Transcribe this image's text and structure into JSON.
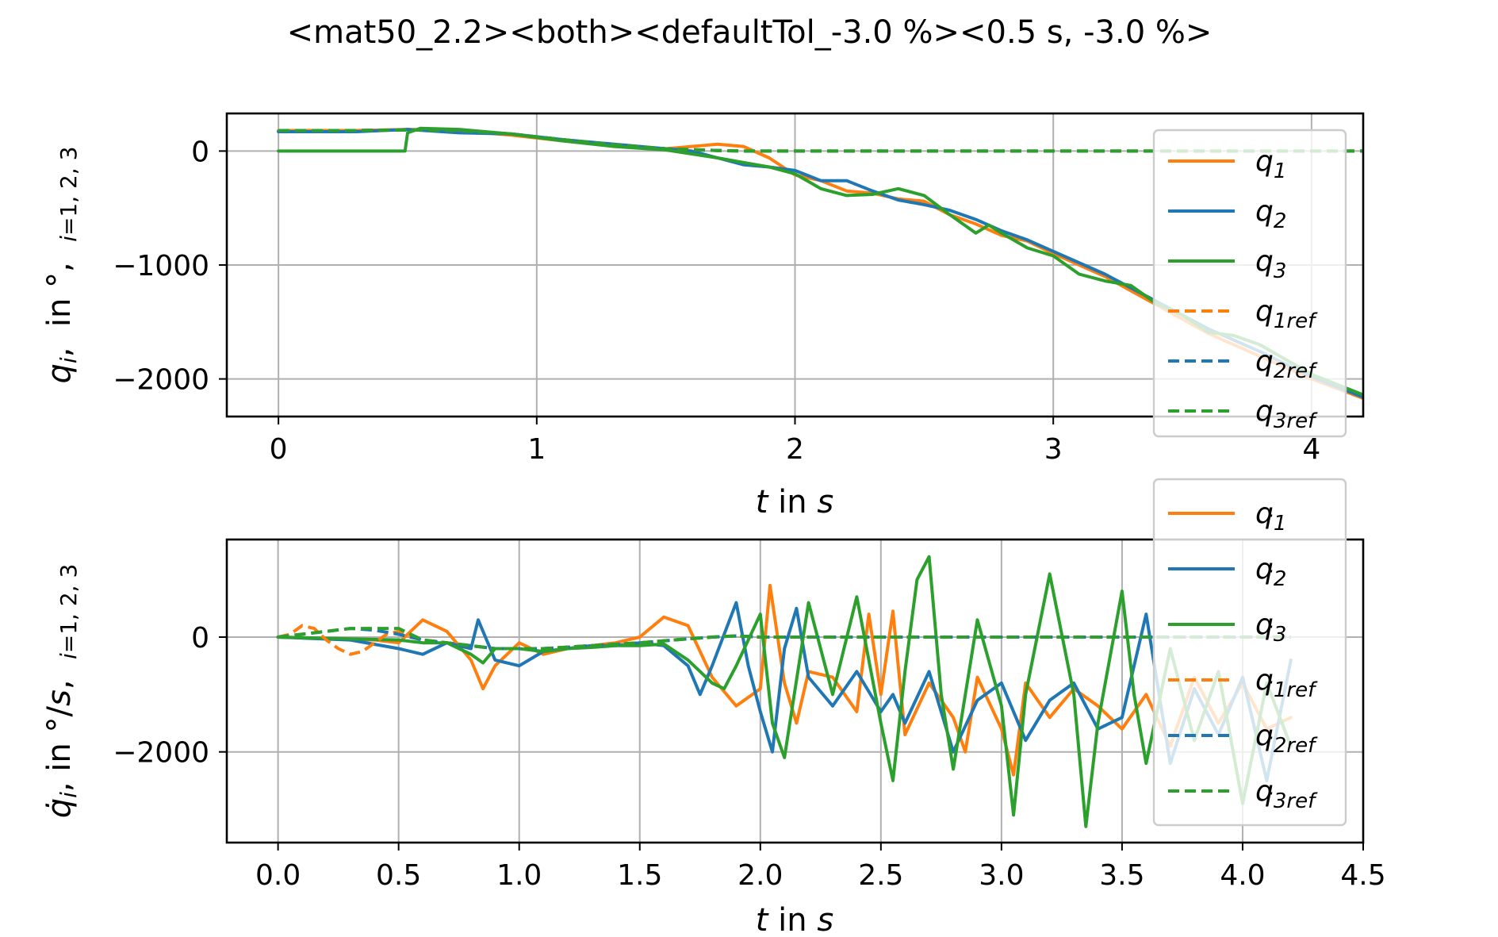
{
  "title": "<mat50_2.2><both><defaultTol_-3.0 %><0.5 s, -3.0 %>",
  "colors": {
    "q1": "#ff7f0e",
    "q2": "#1f77b4",
    "q3": "#2ca02c"
  },
  "chart_data": [
    {
      "type": "line",
      "subplot": "top",
      "xlabel": "t in s",
      "ylabel": "q_i, in °, i=1,2,3",
      "xlim": [
        -0.2,
        4.2
      ],
      "ylim": [
        -2330,
        330
      ],
      "xticks": [
        0,
        1,
        2,
        3,
        4
      ],
      "xtick_labels": [
        "0",
        "1",
        "2",
        "3",
        "4"
      ],
      "yticks": [
        0,
        -1000,
        -2000
      ],
      "ytick_labels": [
        "0",
        "−1000",
        "−2000"
      ],
      "grid": true,
      "legend": "right, inside",
      "legend_entries": [
        "q1",
        "q2",
        "q3",
        "q1ref",
        "q2ref",
        "q3ref"
      ],
      "series": [
        {
          "name": "q1",
          "color": "#ff7f0e",
          "dash": false,
          "x": [
            0.0,
            0.3,
            0.5,
            0.7,
            0.9,
            1.1,
            1.3,
            1.5,
            1.6,
            1.7,
            1.8,
            1.9,
            2.0,
            2.1,
            2.2,
            2.3,
            2.4,
            2.5,
            2.6,
            2.7,
            2.8,
            2.9,
            3.0,
            3.2,
            3.4,
            3.6,
            3.8,
            4.0,
            4.2
          ],
          "y": [
            180,
            180,
            190,
            180,
            140,
            90,
            50,
            20,
            40,
            60,
            40,
            -60,
            -210,
            -260,
            -350,
            -370,
            -420,
            -440,
            -560,
            -640,
            -740,
            -790,
            -900,
            -1100,
            -1350,
            -1600,
            -1800,
            -2000,
            -2170
          ]
        },
        {
          "name": "q2",
          "color": "#1f77b4",
          "dash": false,
          "x": [
            0.0,
            0.3,
            0.5,
            0.7,
            0.9,
            1.1,
            1.3,
            1.5,
            1.6,
            1.7,
            1.8,
            1.9,
            2.0,
            2.1,
            2.2,
            2.3,
            2.4,
            2.5,
            2.6,
            2.7,
            2.8,
            2.9,
            3.0,
            3.2,
            3.4,
            3.6,
            3.8,
            4.0,
            4.2
          ],
          "y": [
            170,
            170,
            190,
            160,
            150,
            100,
            60,
            20,
            0,
            -60,
            -120,
            -140,
            -170,
            -260,
            -260,
            -350,
            -430,
            -470,
            -520,
            -600,
            -700,
            -780,
            -880,
            -1080,
            -1320,
            -1560,
            -1760,
            -1980,
            -2160
          ]
        },
        {
          "name": "q3",
          "color": "#2ca02c",
          "dash": false,
          "x": [
            0.0,
            0.49,
            0.5,
            0.55,
            0.7,
            0.9,
            1.1,
            1.3,
            1.5,
            1.7,
            1.8,
            1.9,
            2.0,
            2.1,
            2.2,
            2.3,
            2.4,
            2.5,
            2.6,
            2.7,
            2.75,
            2.8,
            2.9,
            3.0,
            3.1,
            3.2,
            3.3,
            3.4,
            3.5,
            3.6,
            3.7,
            3.8,
            4.0,
            4.2
          ],
          "y": [
            0,
            0,
            160,
            200,
            190,
            150,
            90,
            40,
            10,
            -60,
            -100,
            -140,
            -200,
            -330,
            -390,
            -380,
            -330,
            -390,
            -560,
            -720,
            -650,
            -720,
            -850,
            -920,
            -1080,
            -1140,
            -1180,
            -1340,
            -1440,
            -1590,
            -1620,
            -1700,
            -1960,
            -2140
          ]
        },
        {
          "name": "q1ref",
          "color": "#ff7f0e",
          "dash": true,
          "x": [
            0.0,
            0.3,
            0.5,
            0.7,
            0.9,
            1.1,
            1.3,
            1.5,
            1.7,
            1.8,
            4.2
          ],
          "y": [
            180,
            180,
            185,
            180,
            150,
            100,
            55,
            20,
            5,
            0,
            0
          ]
        },
        {
          "name": "q2ref",
          "color": "#1f77b4",
          "dash": true,
          "x": [
            0.0,
            0.3,
            0.5,
            0.7,
            0.9,
            1.1,
            1.3,
            1.5,
            1.7,
            1.8,
            4.2
          ],
          "y": [
            180,
            180,
            185,
            180,
            150,
            100,
            55,
            20,
            5,
            0,
            0
          ]
        },
        {
          "name": "q3ref",
          "color": "#2ca02c",
          "dash": true,
          "x": [
            0.0,
            0.3,
            0.5,
            0.7,
            0.9,
            1.1,
            1.3,
            1.5,
            1.7,
            1.8,
            4.2
          ],
          "y": [
            180,
            180,
            185,
            180,
            150,
            100,
            55,
            20,
            5,
            0,
            0
          ]
        }
      ]
    },
    {
      "type": "line",
      "subplot": "bottom",
      "xlabel": "t in s",
      "ylabel": "q̇_i, in °/s, i=1,2,3",
      "xlim": [
        -0.2125,
        4.5
      ],
      "ylim": [
        -3580,
        1700
      ],
      "xticks": [
        0.0,
        0.5,
        1.0,
        1.5,
        2.0,
        2.5,
        3.0,
        3.5,
        4.0,
        4.5
      ],
      "xtick_labels": [
        "0.0",
        "0.5",
        "1.0",
        "1.5",
        "2.0",
        "2.5",
        "3.0",
        "3.5",
        "4.0",
        "4.5"
      ],
      "yticks": [
        0,
        -2000
      ],
      "ytick_labels": [
        "0",
        "−2000"
      ],
      "grid": true,
      "legend": "right, inside",
      "legend_entries": [
        "q̇1",
        "q̇2",
        "q̇3",
        "q̇1ref",
        "q̇2ref",
        "q̇3ref"
      ],
      "series": [
        {
          "name": "q̇1",
          "color": "#ff7f0e",
          "dash": false,
          "x": [
            0.0,
            0.4,
            0.5,
            0.6,
            0.7,
            0.8,
            0.85,
            0.9,
            1.0,
            1.1,
            1.2,
            1.3,
            1.4,
            1.5,
            1.6,
            1.7,
            1.8,
            1.9,
            2.0,
            2.04,
            2.1,
            2.15,
            2.2,
            2.3,
            2.4,
            2.45,
            2.5,
            2.55,
            2.6,
            2.7,
            2.8,
            2.85,
            2.9,
            3.0,
            3.05,
            3.1,
            3.2,
            3.3,
            3.4,
            3.5,
            3.6,
            3.7,
            3.8,
            3.9,
            4.0,
            4.1,
            4.2
          ],
          "y": [
            0,
            -50,
            -100,
            300,
            100,
            -400,
            -900,
            -500,
            -100,
            -300,
            -200,
            -150,
            -100,
            0,
            350,
            200,
            -700,
            -1200,
            -900,
            900,
            -800,
            -1500,
            -600,
            -700,
            -1300,
            400,
            -1000,
            450,
            -1700,
            -800,
            -1400,
            -2000,
            -700,
            -1600,
            -2400,
            -800,
            -1400,
            -900,
            -1200,
            -1600,
            -1000,
            -1900,
            -700,
            -1500,
            -800,
            -1600,
            -1400
          ]
        },
        {
          "name": "q̇2",
          "color": "#1f77b4",
          "dash": false,
          "x": [
            0.0,
            0.3,
            0.5,
            0.6,
            0.7,
            0.8,
            0.83,
            0.9,
            1.0,
            1.1,
            1.2,
            1.3,
            1.4,
            1.5,
            1.6,
            1.7,
            1.75,
            1.8,
            1.9,
            1.95,
            2.0,
            2.05,
            2.1,
            2.15,
            2.2,
            2.3,
            2.4,
            2.5,
            2.55,
            2.6,
            2.7,
            2.8,
            2.9,
            3.0,
            3.1,
            3.2,
            3.3,
            3.4,
            3.5,
            3.6,
            3.7,
            3.8,
            3.9,
            4.0,
            4.1,
            4.2
          ],
          "y": [
            0,
            -50,
            -200,
            -300,
            -100,
            -200,
            300,
            -400,
            -500,
            -250,
            -200,
            -150,
            -150,
            -100,
            -150,
            -500,
            -1000,
            -500,
            600,
            -500,
            -1300,
            -2000,
            -200,
            500,
            -700,
            -1200,
            -600,
            -1300,
            -1000,
            -1500,
            -600,
            -2000,
            -1100,
            -800,
            -1800,
            -1100,
            -800,
            -1600,
            -1400,
            400,
            -2200,
            -900,
            -1700,
            -700,
            -2500,
            -400
          ]
        },
        {
          "name": "q̇3",
          "color": "#2ca02c",
          "dash": false,
          "x": [
            0.0,
            0.5,
            0.6,
            0.7,
            0.8,
            0.85,
            0.9,
            1.0,
            1.1,
            1.2,
            1.3,
            1.4,
            1.5,
            1.6,
            1.7,
            1.8,
            1.85,
            1.9,
            2.0,
            2.05,
            2.1,
            2.2,
            2.3,
            2.4,
            2.5,
            2.55,
            2.6,
            2.65,
            2.7,
            2.75,
            2.8,
            2.9,
            3.0,
            3.05,
            3.1,
            3.2,
            3.3,
            3.35,
            3.4,
            3.5,
            3.55,
            3.6,
            3.7,
            3.8,
            3.9,
            4.0,
            4.1,
            4.2
          ],
          "y": [
            0,
            -50,
            -100,
            -100,
            -300,
            -450,
            -200,
            -200,
            -250,
            -200,
            -180,
            -150,
            -150,
            -120,
            -400,
            -800,
            -900,
            -500,
            400,
            -1500,
            -2100,
            600,
            -1000,
            700,
            -1500,
            -2500,
            -600,
            1000,
            1400,
            -1000,
            -2300,
            300,
            -1200,
            -3100,
            -1000,
            1100,
            -1000,
            -3300,
            -1500,
            800,
            -1000,
            -2200,
            -200,
            -1800,
            -600,
            -2900,
            -800,
            -1900
          ]
        },
        {
          "name": "q̇1ref",
          "color": "#ff7f0e",
          "dash": true,
          "x": [
            0.0,
            0.05,
            0.1,
            0.15,
            0.2,
            0.25,
            0.3,
            0.35,
            0.4,
            0.45,
            0.5,
            0.55,
            0.6,
            0.7,
            0.9,
            1.1,
            1.3,
            1.5,
            1.7,
            1.8,
            1.9,
            2.0,
            4.2
          ],
          "y": [
            0,
            50,
            200,
            150,
            -50,
            -200,
            -300,
            -250,
            -100,
            50,
            100,
            0,
            -50,
            -100,
            -200,
            -200,
            -150,
            -100,
            -30,
            0,
            20,
            0,
            0
          ]
        },
        {
          "name": "q̇2ref",
          "color": "#1f77b4",
          "dash": true,
          "x": [
            0.0,
            0.1,
            0.2,
            0.3,
            0.4,
            0.5,
            0.55,
            0.6,
            0.7,
            0.9,
            1.1,
            1.3,
            1.5,
            1.7,
            1.8,
            1.9,
            2.0,
            4.2
          ],
          "y": [
            0,
            50,
            100,
            150,
            120,
            50,
            0,
            -50,
            -100,
            -200,
            -200,
            -150,
            -100,
            -30,
            0,
            20,
            0,
            0
          ]
        },
        {
          "name": "q̇3ref",
          "color": "#2ca02c",
          "dash": true,
          "x": [
            0.0,
            0.1,
            0.2,
            0.3,
            0.4,
            0.5,
            0.55,
            0.6,
            0.7,
            0.9,
            1.1,
            1.3,
            1.5,
            1.7,
            1.8,
            1.9,
            2.0,
            4.2
          ],
          "y": [
            0,
            50,
            100,
            150,
            150,
            150,
            50,
            -50,
            -100,
            -200,
            -200,
            -150,
            -100,
            -30,
            0,
            20,
            0,
            0
          ]
        }
      ]
    }
  ]
}
